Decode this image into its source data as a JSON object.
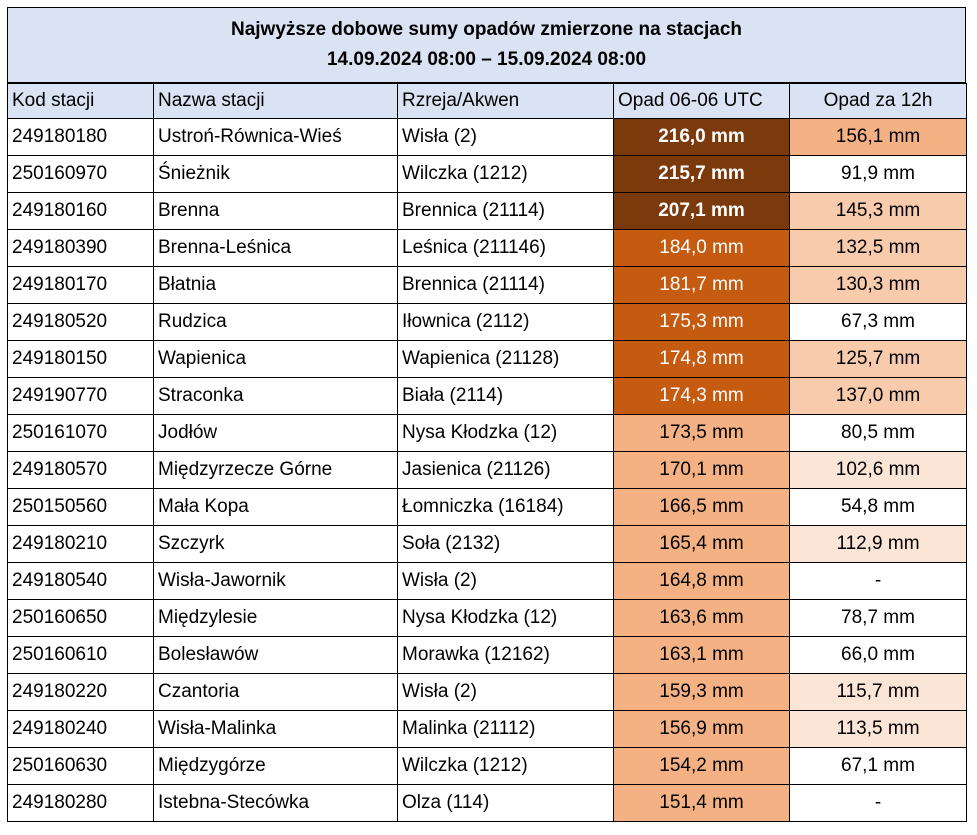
{
  "title": {
    "line1": "Najwyższe dobowe sumy opadów zmierzone na stacjach",
    "line2": "14.09.2024 08:00 – 15.09.2024 08:00"
  },
  "headers": [
    "Kod stacji",
    "Nazwa stacji",
    "Rzreja/Akwen",
    "Opad 06-06 UTC",
    "Opad za 12h"
  ],
  "rows": [
    {
      "code": "249180180",
      "name": "Ustroń-Równica-Wieś",
      "river": "Wisła (2)",
      "opad24": "216,0 mm",
      "opad12": "156,1 mm",
      "c24": "dark",
      "c12": "med12"
    },
    {
      "code": "250160970",
      "name": "Śnieżnik",
      "river": "Wilczka (1212)",
      "opad24": "215,7 mm",
      "opad12": "91,9 mm",
      "c24": "dark",
      "c12": "white12"
    },
    {
      "code": "249180160",
      "name": "Brenna",
      "river": "Brennica (21114)",
      "opad24": "207,1 mm",
      "opad12": "145,3 mm",
      "c24": "dark",
      "c12": "light12"
    },
    {
      "code": "249180390",
      "name": "Brenna-Leśnica",
      "river": "Leśnica (211146)",
      "opad24": "184,0 mm",
      "opad12": "132,5 mm",
      "c24": "mid",
      "c12": "light12"
    },
    {
      "code": "249180170",
      "name": "Błatnia",
      "river": "Brennica (21114)",
      "opad24": "181,7 mm",
      "opad12": "130,3 mm",
      "c24": "mid",
      "c12": "light12"
    },
    {
      "code": "249180520",
      "name": "Rudzica",
      "river": "Iłownica (2112)",
      "opad24": "175,3 mm",
      "opad12": "67,3 mm",
      "c24": "mid",
      "c12": "white12"
    },
    {
      "code": "249180150",
      "name": "Wapienica",
      "river": "Wapienica (21128)",
      "opad24": "174,8 mm",
      "opad12": "125,7 mm",
      "c24": "mid",
      "c12": "light12"
    },
    {
      "code": "249190770",
      "name": "Straconka",
      "river": "Biała (2114)",
      "opad24": "174,3 mm",
      "opad12": "137,0 mm",
      "c24": "mid",
      "c12": "light12"
    },
    {
      "code": "250161070",
      "name": "Jodłów",
      "river": "Nysa Kłodzka (12)",
      "opad24": "173,5 mm",
      "opad12": "80,5 mm",
      "c24": "pale",
      "c12": "white12"
    },
    {
      "code": "249180570",
      "name": "Międzyrzecze Górne",
      "river": "Jasienica (21126)",
      "opad24": "170,1 mm",
      "opad12": "102,6 mm",
      "c24": "pale",
      "c12": "vlight12"
    },
    {
      "code": "250150560",
      "name": "Mała Kopa",
      "river": "Łomniczka (16184)",
      "opad24": "166,5 mm",
      "opad12": "54,8 mm",
      "c24": "pale",
      "c12": "white12"
    },
    {
      "code": "249180210",
      "name": "Szczyrk",
      "river": "Soła (2132)",
      "opad24": "165,4 mm",
      "opad12": "112,9 mm",
      "c24": "pale",
      "c12": "vlight12"
    },
    {
      "code": "249180540",
      "name": "Wisła-Jawornik",
      "river": "Wisła (2)",
      "opad24": "164,8 mm",
      "opad12": "-",
      "c24": "pale",
      "c12": "white12"
    },
    {
      "code": "250160650",
      "name": "Międzylesie",
      "river": "Nysa Kłodzka (12)",
      "opad24": "163,6 mm",
      "opad12": "78,7 mm",
      "c24": "pale",
      "c12": "white12"
    },
    {
      "code": "250160610",
      "name": "Bolesławów",
      "river": "Morawka (12162)",
      "opad24": "163,1 mm",
      "opad12": "66,0 mm",
      "c24": "pale",
      "c12": "white12"
    },
    {
      "code": "249180220",
      "name": "Czantoria",
      "river": "Wisła (2)",
      "opad24": "159,3 mm",
      "opad12": "115,7 mm",
      "c24": "pale",
      "c12": "vlight12"
    },
    {
      "code": "249180240",
      "name": "Wisła-Malinka",
      "river": "Malinka (21112)",
      "opad24": "156,9 mm",
      "opad12": "113,5 mm",
      "c24": "pale",
      "c12": "vlight12"
    },
    {
      "code": "250160630",
      "name": "Międzygórze",
      "river": "Wilczka (1212)",
      "opad24": "154,2 mm",
      "opad12": "67,1 mm",
      "c24": "pale",
      "c12": "white12"
    },
    {
      "code": "249180280",
      "name": "Istebna-Stecówka",
      "river": "Olza (114)",
      "opad24": "151,4 mm",
      "opad12": "-",
      "c24": "pale",
      "c12": "white12"
    }
  ]
}
